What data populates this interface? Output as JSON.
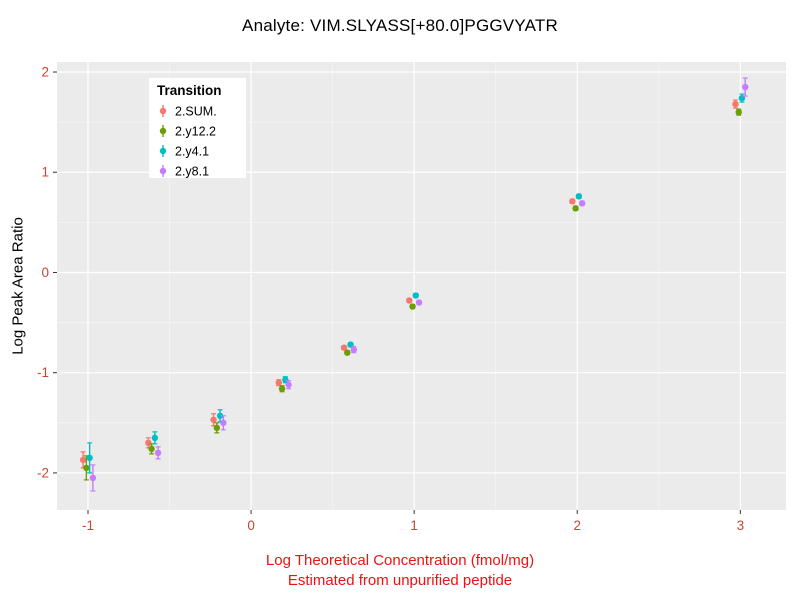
{
  "chart_data": {
    "type": "scatter",
    "title": "Analyte: VIM.SLYASS[+80.0]PGGVYATR",
    "ylabel": "Log Peak Area Ratio",
    "xlabel_line1": "Log Theoretical Concentration (fmol/mg)",
    "xlabel_line2": "Estimated from unpurified peptide",
    "xlim": [
      -1.19,
      3.28
    ],
    "ylim": [
      -2.37,
      2.1
    ],
    "xticks": [
      -1,
      0,
      1,
      2,
      3
    ],
    "yticks": [
      -2,
      -1,
      0,
      1,
      2
    ],
    "grid": "major-and-minor",
    "legend_title": "Transition",
    "legend_position": "top-left-inside",
    "panel_color": "#EBEBEB",
    "major_grid_color": "#FFFFFF",
    "minor_grid_color": "#F5F5F5",
    "tick_label_color": "#cc4433",
    "axis_label_color": "#ee1111",
    "x": [
      -1,
      -0.6,
      -0.2,
      0.2,
      0.6,
      1,
      2,
      3
    ],
    "series": [
      {
        "name": "2.SUM.",
        "color": "#F8766D",
        "y": [
          -1.87,
          -1.7,
          -1.47,
          -1.1,
          -0.75,
          -0.28,
          0.71,
          1.68
        ],
        "err": [
          0.08,
          0.05,
          0.06,
          0.03,
          0.02,
          0.02,
          0.02,
          0.04
        ]
      },
      {
        "name": "2.y12.2",
        "color": "#6B9E00",
        "y": [
          -1.95,
          -1.76,
          -1.55,
          -1.16,
          -0.8,
          -0.34,
          0.64,
          1.6
        ],
        "err": [
          0.12,
          0.05,
          0.05,
          0.03,
          0.02,
          0.02,
          0.02,
          0.03
        ]
      },
      {
        "name": "2.y4.1",
        "color": "#00BFC4",
        "y": [
          -1.85,
          -1.65,
          -1.43,
          -1.07,
          -0.72,
          -0.23,
          0.76,
          1.74
        ],
        "err": [
          0.15,
          0.06,
          0.06,
          0.03,
          0.02,
          0.02,
          0.02,
          0.04
        ]
      },
      {
        "name": "2.y8.1",
        "color": "#C77CFF",
        "y": [
          -2.05,
          -1.8,
          -1.5,
          -1.12,
          -0.77,
          -0.3,
          0.69,
          1.85
        ],
        "err": [
          0.13,
          0.06,
          0.07,
          0.04,
          0.03,
          0.02,
          0.02,
          0.09
        ]
      }
    ]
  }
}
